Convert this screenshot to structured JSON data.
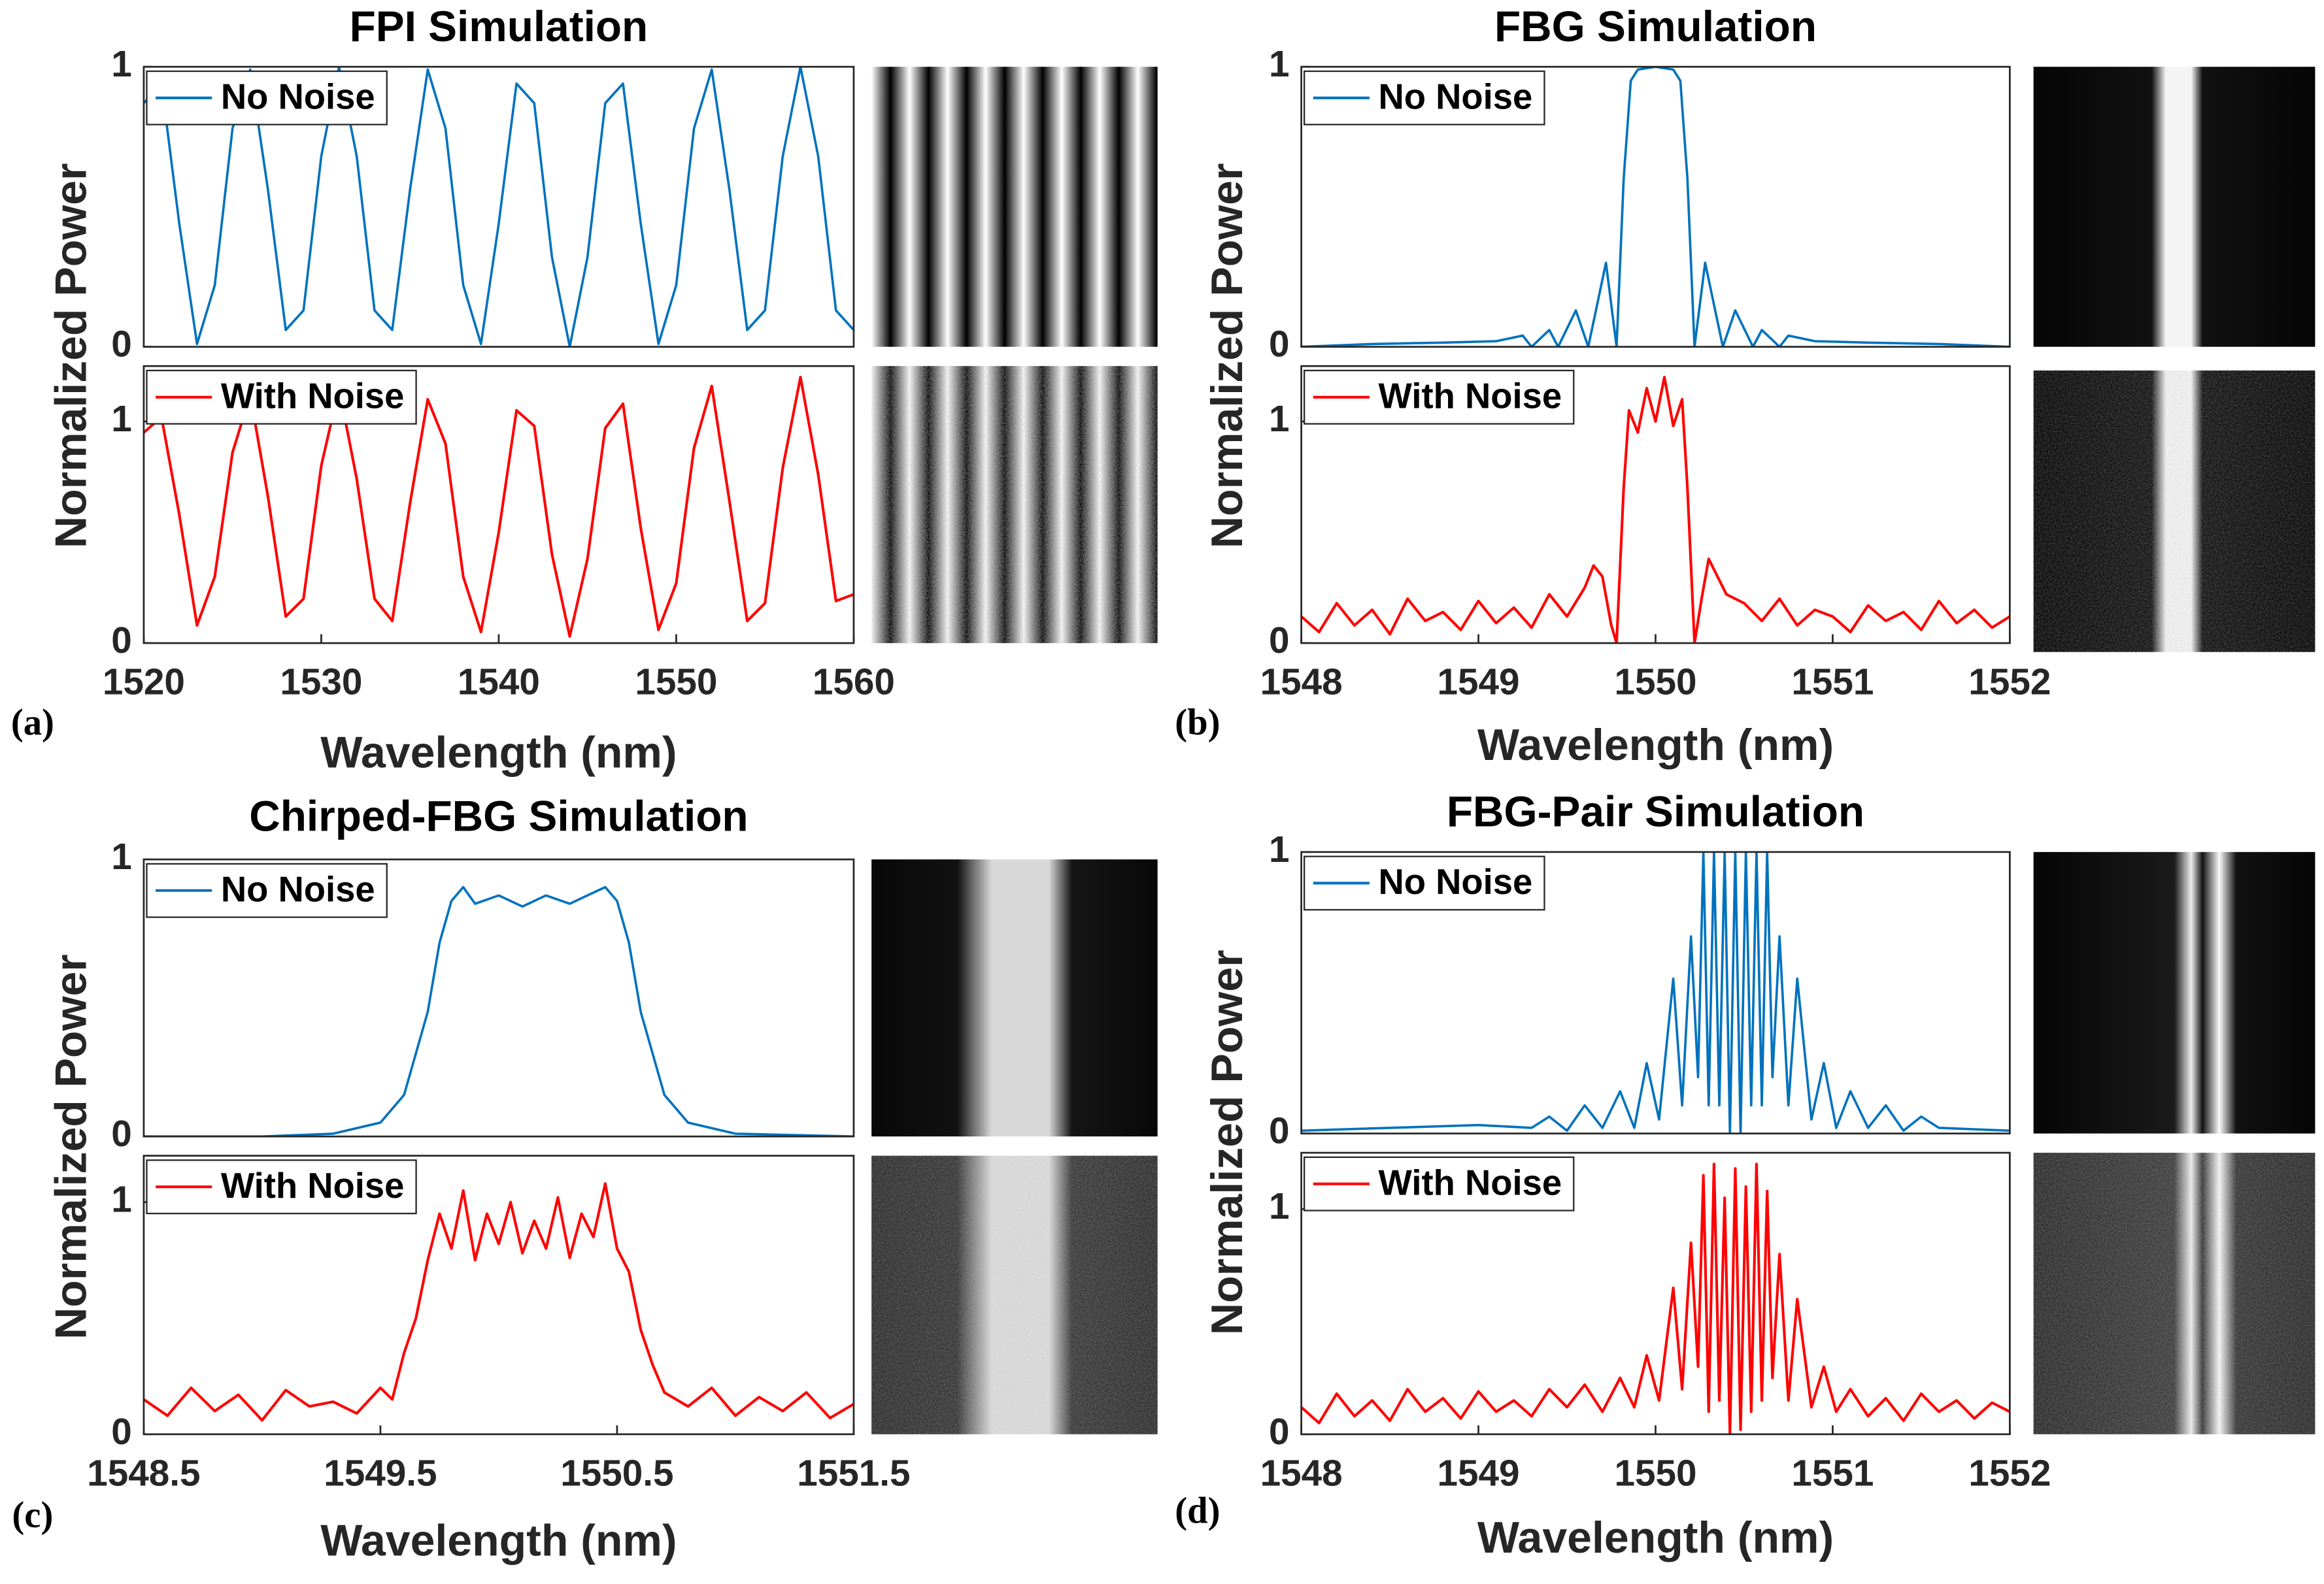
{
  "chart_data": [
    {
      "type": "line",
      "title": "FPI Simulation",
      "ylabel": "Normalized Power",
      "legend": "upper left",
      "xlim": [
        1520,
        1560
      ],
      "ylim": [
        0,
        1
      ],
      "yticks": [
        0,
        1
      ],
      "x": [
        1520,
        1521,
        1522,
        1523,
        1524,
        1525,
        1526,
        1527,
        1528,
        1529,
        1530,
        1531,
        1532,
        1533,
        1534,
        1535,
        1536,
        1537,
        1538,
        1539,
        1540,
        1541,
        1542,
        1543,
        1544,
        1545,
        1546,
        1547,
        1548,
        1549,
        1550,
        1551,
        1552,
        1553,
        1554,
        1555,
        1556,
        1557,
        1558,
        1559,
        1560
      ],
      "series": [
        {
          "name": "No Noise",
          "color": "#0072bd",
          "values": [
            0.87,
            0.94,
            0.44,
            0.01,
            0.22,
            0.78,
            0.99,
            0.56,
            0.06,
            0.13,
            0.68,
            1.0,
            0.68,
            0.13,
            0.06,
            0.56,
            0.99,
            0.78,
            0.22,
            0.01,
            0.44,
            0.94,
            0.87,
            0.32,
            0,
            0.32,
            0.87,
            0.94,
            0.44,
            0.01,
            0.22,
            0.78,
            0.99,
            0.56,
            0.06,
            0.13,
            0.68,
            1.0,
            0.68,
            0.13,
            0.06
          ]
        }
      ]
    },
    {
      "type": "line",
      "xlabel": "Wavelength (nm)",
      "panel_label": "(a)",
      "legend": "upper left",
      "xlim": [
        1520,
        1560
      ],
      "xticks": [
        1520,
        1530,
        1540,
        1550,
        1560
      ],
      "ylim": [
        0,
        1.25
      ],
      "yticks": [
        0,
        1
      ],
      "x": [
        1520,
        1521,
        1522,
        1523,
        1524,
        1525,
        1526,
        1527,
        1528,
        1529,
        1530,
        1531,
        1532,
        1533,
        1534,
        1535,
        1536,
        1537,
        1538,
        1539,
        1540,
        1541,
        1542,
        1543,
        1544,
        1545,
        1546,
        1547,
        1548,
        1549,
        1550,
        1551,
        1552,
        1553,
        1554,
        1555,
        1556,
        1557,
        1558,
        1559,
        1560
      ],
      "series": [
        {
          "name": "With Noise",
          "color": "#ff0000",
          "values": [
            0.95,
            1.02,
            0.58,
            0.08,
            0.3,
            0.86,
            1.12,
            0.66,
            0.12,
            0.2,
            0.8,
            1.15,
            0.74,
            0.2,
            0.1,
            0.63,
            1.1,
            0.9,
            0.3,
            0.05,
            0.5,
            1.05,
            0.98,
            0.4,
            0.03,
            0.38,
            0.97,
            1.08,
            0.52,
            0.06,
            0.27,
            0.88,
            1.16,
            0.64,
            0.1,
            0.18,
            0.79,
            1.2,
            0.76,
            0.19,
            0.22
          ]
        }
      ]
    },
    {
      "type": "line",
      "title": "FBG Simulation",
      "ylabel": "Normalized Power",
      "legend": "upper left",
      "xlim": [
        1548,
        1552
      ],
      "ylim": [
        0,
        1
      ],
      "yticks": [
        0,
        1
      ],
      "x": [
        1548,
        1548.4,
        1548.8,
        1549.1,
        1549.25,
        1549.3,
        1549.4,
        1549.45,
        1549.55,
        1549.62,
        1549.72,
        1549.78,
        1549.82,
        1549.86,
        1549.9,
        1550,
        1550.1,
        1550.14,
        1550.18,
        1550.22,
        1550.28,
        1550.38,
        1550.45,
        1550.55,
        1550.6,
        1550.7,
        1550.75,
        1550.9,
        1551.2,
        1551.6,
        1552
      ],
      "series": [
        {
          "name": "No Noise",
          "color": "#0072bd",
          "values": [
            0,
            0.01,
            0.015,
            0.02,
            0.04,
            0,
            0.06,
            0,
            0.13,
            0,
            0.3,
            0,
            0.6,
            0.95,
            0.99,
            1.0,
            0.99,
            0.95,
            0.6,
            0,
            0.3,
            0,
            0.13,
            0,
            0.06,
            0,
            0.04,
            0.02,
            0.015,
            0.01,
            0
          ]
        }
      ]
    },
    {
      "type": "line",
      "xlabel": "Wavelength (nm)",
      "panel_label": "(b)",
      "legend": "upper left",
      "xlim": [
        1548,
        1552
      ],
      "xticks": [
        1548,
        1549,
        1550,
        1551,
        1552
      ],
      "ylim": [
        0,
        1.25
      ],
      "yticks": [
        0,
        1
      ],
      "x": [
        1548,
        1548.1,
        1548.2,
        1548.3,
        1548.4,
        1548.5,
        1548.6,
        1548.7,
        1548.8,
        1548.9,
        1549,
        1549.1,
        1549.2,
        1549.3,
        1549.4,
        1549.5,
        1549.6,
        1549.65,
        1549.7,
        1549.75,
        1549.78,
        1549.82,
        1549.85,
        1549.9,
        1549.95,
        1550,
        1550.05,
        1550.1,
        1550.15,
        1550.18,
        1550.22,
        1550.26,
        1550.3,
        1550.35,
        1550.4,
        1550.5,
        1550.6,
        1550.7,
        1550.8,
        1550.9,
        1551,
        1551.1,
        1551.2,
        1551.3,
        1551.4,
        1551.5,
        1551.6,
        1551.7,
        1551.8,
        1551.9,
        1552
      ],
      "series": [
        {
          "name": "With Noise",
          "color": "#ff0000",
          "values": [
            0.12,
            0.05,
            0.18,
            0.08,
            0.15,
            0.04,
            0.2,
            0.1,
            0.14,
            0.06,
            0.19,
            0.09,
            0.16,
            0.07,
            0.22,
            0.12,
            0.25,
            0.35,
            0.3,
            0.08,
            0,
            0.7,
            1.05,
            0.95,
            1.15,
            1.0,
            1.2,
            0.98,
            1.1,
            0.7,
            0,
            0.2,
            0.38,
            0.3,
            0.22,
            0.18,
            0.1,
            0.2,
            0.08,
            0.15,
            0.12,
            0.05,
            0.17,
            0.1,
            0.14,
            0.06,
            0.19,
            0.09,
            0.15,
            0.07,
            0.12
          ]
        }
      ]
    },
    {
      "type": "line",
      "title": "Chirped-FBG Simulation",
      "ylabel": "Normalized Power",
      "legend": "upper left",
      "xlim": [
        1548.5,
        1551.5
      ],
      "ylim": [
        0,
        1
      ],
      "yticks": [
        0,
        1
      ],
      "x": [
        1548.5,
        1549,
        1549.3,
        1549.5,
        1549.6,
        1549.7,
        1549.75,
        1549.8,
        1549.85,
        1549.9,
        1550,
        1550.1,
        1550.2,
        1550.3,
        1550.4,
        1550.45,
        1550.5,
        1550.55,
        1550.6,
        1550.7,
        1550.8,
        1551,
        1551.5
      ],
      "series": [
        {
          "name": "No Noise",
          "color": "#0072bd",
          "values": [
            0,
            0,
            0.01,
            0.05,
            0.15,
            0.45,
            0.7,
            0.85,
            0.9,
            0.84,
            0.87,
            0.83,
            0.87,
            0.84,
            0.88,
            0.9,
            0.85,
            0.7,
            0.45,
            0.15,
            0.05,
            0.01,
            0
          ]
        }
      ]
    },
    {
      "type": "line",
      "xlabel": "Wavelength (nm)",
      "panel_label": "(c)",
      "legend": "upper left",
      "xlim": [
        1548.5,
        1551.5
      ],
      "xticks": [
        1548.5,
        1549.5,
        1550.5,
        1551.5
      ],
      "ylim": [
        0,
        1.2
      ],
      "yticks": [
        0,
        1
      ],
      "x": [
        1548.5,
        1548.6,
        1548.7,
        1548.8,
        1548.9,
        1549,
        1549.1,
        1549.2,
        1549.3,
        1549.4,
        1549.5,
        1549.55,
        1549.6,
        1549.65,
        1549.7,
        1549.75,
        1549.8,
        1549.85,
        1549.9,
        1549.95,
        1550,
        1550.05,
        1550.1,
        1550.15,
        1550.2,
        1550.25,
        1550.3,
        1550.35,
        1550.4,
        1550.45,
        1550.5,
        1550.55,
        1550.6,
        1550.65,
        1550.7,
        1550.8,
        1550.9,
        1551,
        1551.1,
        1551.2,
        1551.3,
        1551.4,
        1551.5
      ],
      "series": [
        {
          "name": "With Noise",
          "color": "#ff0000",
          "values": [
            0.15,
            0.08,
            0.2,
            0.1,
            0.17,
            0.06,
            0.19,
            0.12,
            0.14,
            0.09,
            0.2,
            0.15,
            0.35,
            0.5,
            0.75,
            0.95,
            0.8,
            1.05,
            0.75,
            0.95,
            0.82,
            1.0,
            0.78,
            0.92,
            0.8,
            1.02,
            0.76,
            0.95,
            0.85,
            1.08,
            0.8,
            0.7,
            0.45,
            0.3,
            0.18,
            0.12,
            0.2,
            0.08,
            0.16,
            0.1,
            0.18,
            0.07,
            0.13
          ]
        }
      ]
    },
    {
      "type": "line",
      "title": "FBG-Pair Simulation",
      "ylabel": "Normalized Power",
      "legend": "upper left",
      "xlim": [
        1548,
        1552
      ],
      "ylim": [
        0,
        1
      ],
      "yticks": [
        0,
        1
      ],
      "x": [
        1548,
        1548.5,
        1549,
        1549.3,
        1549.4,
        1549.5,
        1549.6,
        1549.7,
        1549.8,
        1549.88,
        1549.95,
        1550.02,
        1550.1,
        1550.15,
        1550.2,
        1550.24,
        1550.27,
        1550.3,
        1550.33,
        1550.36,
        1550.39,
        1550.42,
        1550.45,
        1550.48,
        1550.51,
        1550.54,
        1550.57,
        1550.6,
        1550.63,
        1550.66,
        1550.7,
        1550.75,
        1550.8,
        1550.88,
        1550.95,
        1551.02,
        1551.1,
        1551.2,
        1551.3,
        1551.4,
        1551.5,
        1551.6,
        1552
      ],
      "series": [
        {
          "name": "No Noise",
          "color": "#0072bd",
          "values": [
            0.01,
            0.02,
            0.03,
            0.02,
            0.06,
            0.01,
            0.1,
            0.02,
            0.15,
            0.02,
            0.25,
            0.05,
            0.55,
            0.1,
            0.7,
            0.2,
            1.0,
            0.1,
            1.0,
            0.1,
            1.0,
            0,
            1.0,
            0,
            1.0,
            0.1,
            1.0,
            0.1,
            1.0,
            0.2,
            0.7,
            0.1,
            0.55,
            0.05,
            0.25,
            0.02,
            0.15,
            0.02,
            0.1,
            0.01,
            0.06,
            0.02,
            0.01
          ]
        }
      ]
    },
    {
      "type": "line",
      "xlabel": "Wavelength (nm)",
      "panel_label": "(d)",
      "legend": "upper left",
      "xlim": [
        1548,
        1552
      ],
      "xticks": [
        1548,
        1549,
        1550,
        1551,
        1552
      ],
      "ylim": [
        0,
        1.25
      ],
      "yticks": [
        0,
        1
      ],
      "x": [
        1548,
        1548.1,
        1548.2,
        1548.3,
        1548.4,
        1548.5,
        1548.6,
        1548.7,
        1548.8,
        1548.9,
        1549,
        1549.1,
        1549.2,
        1549.3,
        1549.4,
        1549.5,
        1549.6,
        1549.7,
        1549.8,
        1549.88,
        1549.95,
        1550.02,
        1550.1,
        1550.15,
        1550.2,
        1550.24,
        1550.27,
        1550.3,
        1550.33,
        1550.36,
        1550.39,
        1550.42,
        1550.45,
        1550.48,
        1550.51,
        1550.54,
        1550.57,
        1550.6,
        1550.63,
        1550.66,
        1550.7,
        1550.75,
        1550.8,
        1550.88,
        1550.95,
        1551.02,
        1551.1,
        1551.2,
        1551.3,
        1551.4,
        1551.5,
        1551.6,
        1551.7,
        1551.8,
        1551.9,
        1552
      ],
      "series": [
        {
          "name": "With Noise",
          "color": "#ff0000",
          "values": [
            0.12,
            0.05,
            0.18,
            0.08,
            0.15,
            0.06,
            0.2,
            0.1,
            0.16,
            0.07,
            0.19,
            0.1,
            0.15,
            0.08,
            0.2,
            0.12,
            0.22,
            0.1,
            0.25,
            0.12,
            0.35,
            0.15,
            0.65,
            0.2,
            0.85,
            0.3,
            1.15,
            0.1,
            1.2,
            0.15,
            1.05,
            0,
            1.18,
            0.02,
            1.1,
            0.1,
            1.2,
            0.15,
            1.08,
            0.25,
            0.8,
            0.15,
            0.6,
            0.12,
            0.3,
            0.1,
            0.2,
            0.08,
            0.16,
            0.06,
            0.18,
            0.1,
            0.15,
            0.07,
            0.14,
            0.1
          ]
        }
      ]
    }
  ]
}
